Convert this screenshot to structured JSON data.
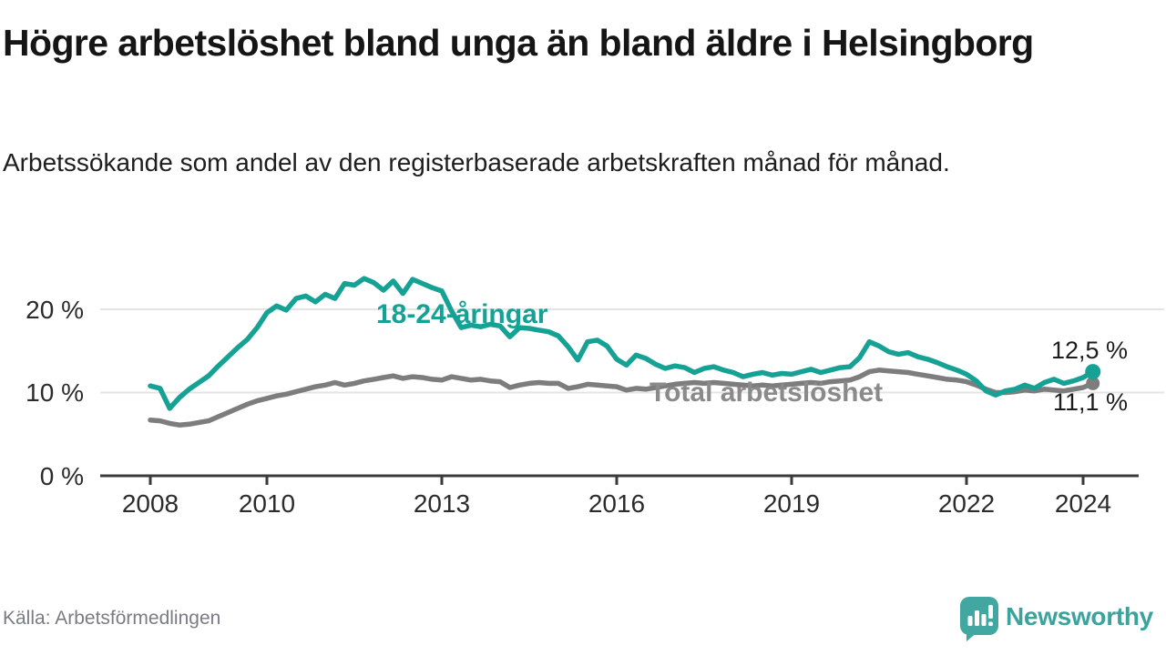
{
  "header": {
    "title": "Högre arbetslöshet bland unga än bland äldre i Helsingborg",
    "subtitle": "Arbetssökande som andel av den registerbaserade arbetskraften månad för månad."
  },
  "footer": {
    "source": "Källa: Arbetsförmedlingen",
    "brand": "Newsworthy"
  },
  "colors": {
    "youth_line": "#16a195",
    "total_line": "#7d7d7d",
    "total_label": "#8a8a8a",
    "value_label": "#1d1d1d",
    "axis": "#3a3a3a",
    "gridline": "#e4e4e4",
    "logo_teal": "#43a7a1"
  },
  "chart_data": {
    "type": "line",
    "title": "Högre arbetslöshet bland unga än bland äldre i Helsingborg",
    "subtitle": "Arbetssökande som andel av den registerbaserade arbetskraften månad för månad.",
    "ylabel": "",
    "xlabel": "",
    "ylim": [
      0,
      25
    ],
    "xlim": [
      2008.0,
      2024.25
    ],
    "grid": "horizontal",
    "legend_position": "inline-labels",
    "yticks": [
      "20 %",
      "10 %",
      "0 %"
    ],
    "ytick_values": [
      20,
      10,
      0
    ],
    "xticks": [
      "2008",
      "2010",
      "2013",
      "2016",
      "2019",
      "2022",
      "2024"
    ],
    "xtick_values": [
      2008,
      2010,
      2013,
      2016,
      2019,
      2022,
      2024
    ],
    "end_labels": {
      "youth": "12,5 %",
      "total": "11,1 %"
    },
    "x": {
      "start": 2008.0,
      "step": 0.16667,
      "unit": "years (monthly data, sampled every 2 months)"
    },
    "series": [
      {
        "name": "18-24-åringar",
        "color": "#16a195",
        "last_value_label": "12,5 %",
        "values": [
          10.8,
          10.5,
          8.1,
          9.4,
          10.4,
          11.2,
          12.0,
          13.2,
          14.3,
          15.4,
          16.4,
          17.8,
          19.6,
          20.4,
          19.9,
          21.3,
          21.6,
          20.9,
          21.8,
          21.3,
          23.1,
          22.9,
          23.7,
          23.2,
          22.3,
          23.4,
          21.9,
          23.6,
          23.1,
          22.6,
          22.2,
          19.8,
          17.8,
          18.1,
          17.9,
          18.2,
          18.0,
          16.7,
          17.8,
          17.7,
          17.5,
          17.3,
          16.8,
          15.5,
          13.9,
          16.1,
          16.3,
          15.6,
          14.0,
          13.3,
          14.5,
          14.1,
          13.4,
          12.9,
          13.2,
          13.0,
          12.4,
          12.9,
          13.1,
          12.7,
          12.4,
          11.9,
          12.2,
          12.4,
          12.1,
          12.3,
          12.2,
          12.5,
          12.8,
          12.4,
          12.7,
          13.0,
          13.1,
          14.2,
          16.1,
          15.6,
          14.9,
          14.6,
          14.8,
          14.3,
          14.0,
          13.6,
          13.1,
          12.7,
          12.2,
          11.4,
          10.2,
          9.7,
          10.2,
          10.4,
          10.9,
          10.5,
          11.2,
          11.6,
          11.1,
          11.4,
          11.8,
          12.5
        ]
      },
      {
        "name": "Total arbetslöshet",
        "color": "#7d7d7d",
        "last_value_label": "11,1 %",
        "values": [
          6.7,
          6.6,
          6.3,
          6.1,
          6.2,
          6.4,
          6.6,
          7.1,
          7.6,
          8.1,
          8.6,
          9.0,
          9.3,
          9.6,
          9.8,
          10.1,
          10.4,
          10.7,
          10.9,
          11.2,
          10.9,
          11.1,
          11.4,
          11.6,
          11.8,
          12.0,
          11.7,
          11.9,
          11.8,
          11.6,
          11.5,
          11.9,
          11.7,
          11.5,
          11.6,
          11.4,
          11.3,
          10.6,
          10.9,
          11.1,
          11.2,
          11.1,
          11.1,
          10.5,
          10.7,
          11.0,
          10.9,
          10.8,
          10.7,
          10.3,
          10.5,
          10.4,
          10.6,
          10.8,
          11.0,
          11.1,
          11.2,
          11.1,
          11.2,
          11.1,
          11.0,
          10.9,
          10.8,
          10.9,
          10.8,
          10.9,
          11.0,
          11.1,
          11.2,
          11.1,
          11.3,
          11.4,
          11.5,
          11.9,
          12.5,
          12.7,
          12.6,
          12.5,
          12.4,
          12.2,
          12.0,
          11.8,
          11.6,
          11.5,
          11.3,
          10.9,
          10.4,
          10.0,
          10.0,
          10.1,
          10.3,
          10.2,
          10.4,
          10.3,
          10.2,
          10.4,
          10.6,
          11.1
        ]
      }
    ]
  }
}
